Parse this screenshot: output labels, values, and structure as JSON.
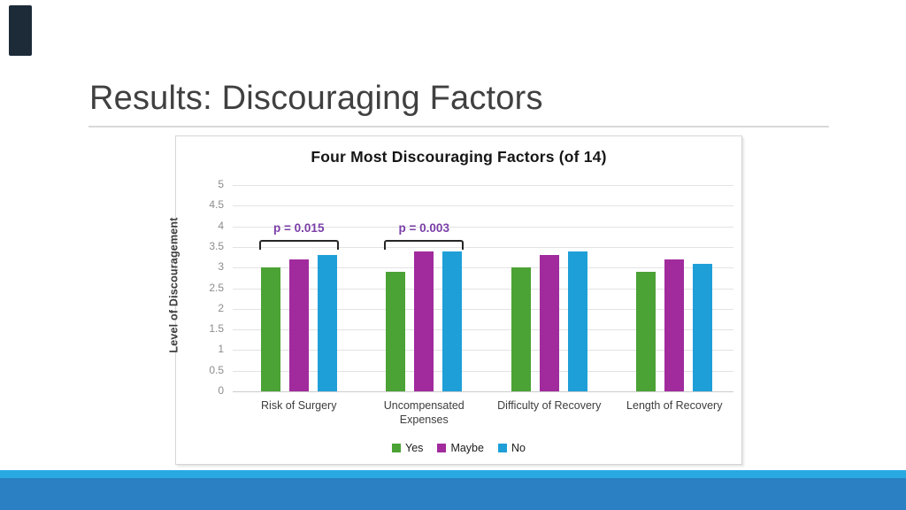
{
  "slide": {
    "title": "Results: Discouraging Factors",
    "accent_color": "#1d2b39",
    "footer_strip_color": "#29a9e2",
    "footer_band_color": "#2a80c3"
  },
  "chart_data": {
    "type": "bar",
    "title": "Four Most Discouraging Factors (of 14)",
    "xlabel": "",
    "ylabel": "Level of Discouragement",
    "ylim": [
      0,
      5
    ],
    "ytick_step": 0.5,
    "grid": true,
    "legend_position": "bottom",
    "categories": [
      "Risk of Surgery",
      "Uncompensated Expenses",
      "Difficulty of Recovery",
      "Length of Recovery"
    ],
    "series": [
      {
        "name": "Yes",
        "color": "#4ba235",
        "values": [
          3.0,
          2.9,
          3.0,
          2.9
        ]
      },
      {
        "name": "Maybe",
        "color": "#a12b9d",
        "values": [
          3.2,
          3.4,
          3.3,
          3.2
        ]
      },
      {
        "name": "No",
        "color": "#1f9fd8",
        "values": [
          3.3,
          3.4,
          3.4,
          3.1
        ]
      }
    ],
    "annotations": [
      {
        "label": "p = 0.015",
        "category_index": 0,
        "color": "#7b3fa8",
        "span_value": 3.67
      },
      {
        "label": "p = 0.003",
        "category_index": 1,
        "color": "#7b3fa8",
        "span_value": 3.67
      }
    ]
  }
}
